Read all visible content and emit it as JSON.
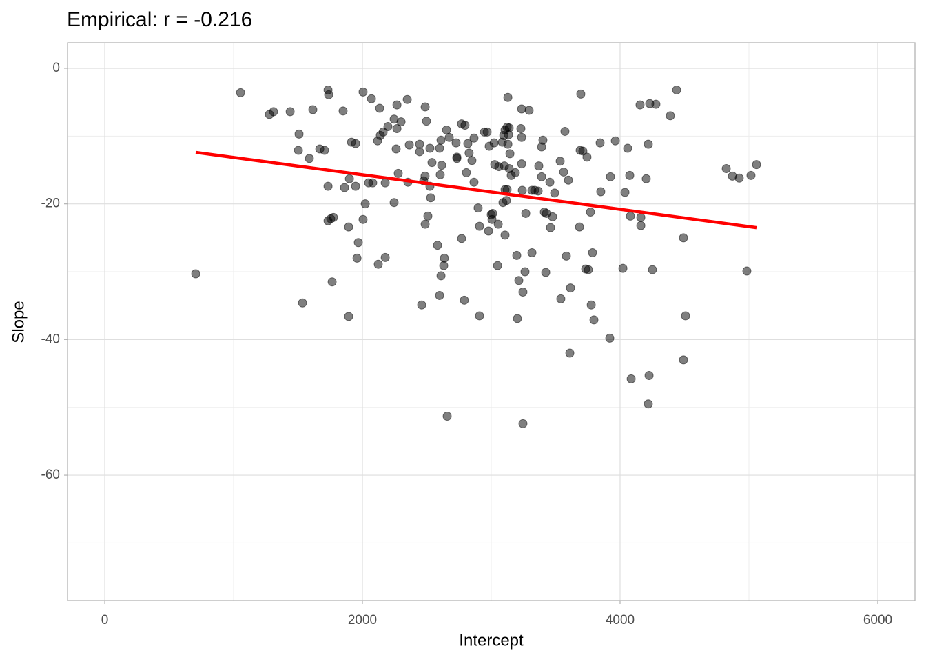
{
  "chart_data": {
    "type": "scatter",
    "title": "Empirical: r = -0.216",
    "x_label": "Intercept",
    "y_label": "Slope",
    "xlim": [
      -289,
      6289
    ],
    "ylim": [
      -78.5,
      3.76
    ],
    "xticks": [
      0,
      2000,
      4000,
      6000
    ],
    "yticks": [
      0,
      -20,
      -40,
      -60
    ],
    "x_minor_grid": [
      1000,
      3000,
      5000
    ],
    "y_minor_grid": [
      -10,
      -30,
      -50,
      -70
    ],
    "grid": true,
    "series": [
      {
        "color": "#000000",
        "opacity": 0.5,
        "x": [
          706,
          1054,
          1278,
          1310,
          1439,
          1615,
          1508,
          1503,
          1588,
          1669,
          1706,
          1733,
          1738,
          1733,
          1733,
          1754,
          1775,
          1765,
          1535,
          1850,
          1861,
          1899,
          1915,
          1947,
          1947,
          1893,
          1968,
          1958,
          1893,
          2005,
          2070,
          2134,
          2022,
          2005,
          2048,
          2080,
          2118,
          2139,
          2161,
          2198,
          2246,
          2300,
          2268,
          2348,
          2177,
          2262,
          2278,
          2246,
          2177,
          2123,
          2268,
          2364,
          2444,
          2487,
          2497,
          2444,
          2353,
          2476,
          2486,
          2524,
          2540,
          2524,
          2530,
          2508,
          2487,
          2460,
          2583,
          2636,
          2631,
          2610,
          2599,
          2658,
          2610,
          2599,
          2604,
          2615,
          2653,
          2674,
          2727,
          2733,
          2733,
          2770,
          2796,
          2818,
          2828,
          2850,
          2866,
          2807,
          2866,
          2791,
          2770,
          2898,
          2909,
          2909,
          2947,
          2968,
          2984,
          3011,
          3000,
          3006,
          2979,
          3022,
          3027,
          3059,
          3054,
          3049,
          3086,
          3097,
          3107,
          3123,
          3139,
          3129,
          3134,
          3129,
          3145,
          3102,
          3139,
          3107,
          3123,
          3091,
          3118,
          3107,
          3155,
          3187,
          3198,
          3214,
          3203,
          3236,
          3230,
          3236,
          3294,
          3236,
          3241,
          3246,
          3262,
          3268,
          3246,
          3316,
          3364,
          3337,
          3316,
          3401,
          3391,
          3369,
          3391,
          3428,
          3412,
          3423,
          3455,
          3460,
          3476,
          3492,
          3535,
          3540,
          3572,
          3562,
          3599,
          3583,
          3615,
          3610,
          3695,
          3690,
          3711,
          3743,
          3685,
          3733,
          3754,
          3770,
          3786,
          3776,
          3797,
          3845,
          3850,
          3925,
          3963,
          3920,
          4022,
          4038,
          4059,
          4075,
          4080,
          4086,
          4155,
          4161,
          4161,
          4203,
          4219,
          4230,
          4278,
          4225,
          4219,
          4251,
          4390,
          4439,
          4492,
          4492,
          4508,
          4824,
          4872,
          4925,
          5016,
          5059,
          4984
        ],
        "y": [
          -30.3,
          -3.6,
          -6.8,
          -6.4,
          -6.4,
          -6.1,
          -9.7,
          -12.1,
          -13.3,
          -11.9,
          -12.1,
          -3.2,
          -3.9,
          -17.4,
          -22.5,
          -22.2,
          -22.0,
          -31.5,
          -34.6,
          -6.3,
          -17.6,
          -16.3,
          -10.9,
          -11.1,
          -17.4,
          -23.4,
          -25.7,
          -28.0,
          -36.6,
          -3.5,
          -4.5,
          -5.9,
          -20.0,
          -22.3,
          -16.9,
          -16.9,
          -10.7,
          -9.9,
          -9.4,
          -8.6,
          -7.5,
          -7.9,
          -5.4,
          -4.6,
          -16.9,
          -11.9,
          -15.5,
          -19.8,
          -27.9,
          -28.9,
          -8.9,
          -11.3,
          -11.2,
          -5.7,
          -7.8,
          -12.3,
          -16.8,
          -16.6,
          -15.9,
          -11.8,
          -13.9,
          -17.4,
          -19.1,
          -21.8,
          -23.0,
          -34.9,
          -26.1,
          -28.0,
          -29.1,
          -30.6,
          -33.5,
          -51.3,
          -10.6,
          -11.8,
          -15.7,
          -14.3,
          -9.1,
          -10.2,
          -11.0,
          -13.1,
          -13.3,
          -8.2,
          -8.4,
          -11.1,
          -12.5,
          -13.6,
          -10.3,
          -15.4,
          -16.8,
          -34.2,
          -25.1,
          -20.6,
          -23.3,
          -36.5,
          -9.4,
          -9.4,
          -11.5,
          -21.4,
          -21.6,
          -22.3,
          -24.0,
          -11.0,
          -14.2,
          -14.5,
          -23.0,
          -29.1,
          -10.9,
          -9.9,
          -9.1,
          -8.7,
          -8.8,
          -4.3,
          -9.8,
          -11.2,
          -12.6,
          -14.4,
          -14.8,
          -17.9,
          -17.9,
          -19.8,
          -19.5,
          -24.6,
          -15.8,
          -15.4,
          -27.6,
          -31.3,
          -36.9,
          -10.2,
          -8.9,
          -6.0,
          -6.2,
          -14.1,
          -18.0,
          -33.0,
          -30.0,
          -21.4,
          -52.4,
          -18.0,
          -18.1,
          -18.0,
          -27.2,
          -10.6,
          -11.6,
          -14.4,
          -16.0,
          -21.4,
          -21.2,
          -30.1,
          -16.8,
          -23.5,
          -21.9,
          -18.4,
          -13.7,
          -34.0,
          -9.3,
          -15.3,
          -16.5,
          -27.7,
          -32.4,
          -42.0,
          -3.8,
          -12.1,
          -12.2,
          -13.1,
          -23.4,
          -29.6,
          -29.7,
          -21.2,
          -27.2,
          -34.9,
          -37.1,
          -11.0,
          -18.2,
          -16.0,
          -10.7,
          -39.8,
          -29.5,
          -18.3,
          -11.8,
          -15.8,
          -21.8,
          -45.8,
          -5.4,
          -22.0,
          -23.2,
          -16.3,
          -11.2,
          -5.2,
          -5.3,
          -45.3,
          -49.5,
          -29.7,
          -7.0,
          -3.2,
          -25.0,
          -43.0,
          -36.5,
          -14.8,
          -15.9,
          -16.2,
          -15.8,
          -14.2,
          -29.9
        ]
      }
    ],
    "fit": {
      "color": "#ff0000",
      "x": [
        706,
        5059
      ],
      "y": [
        -12.4,
        -23.5
      ]
    }
  }
}
